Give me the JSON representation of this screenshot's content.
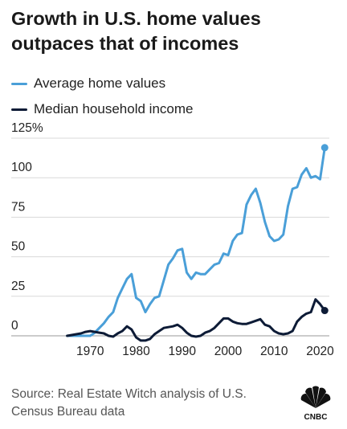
{
  "title_lines": [
    "Growth in U.S. home values",
    "outpaces that of incomes"
  ],
  "source": "Source: Real Estate Witch analysis of U.S. Census Bureau data",
  "logo_text": "CNBC",
  "colors": {
    "home": "#4a9fd8",
    "income": "#0d1b36",
    "grid": "#d9d9d9"
  },
  "chart_data": {
    "type": "line",
    "title": "Growth in U.S. home values outpaces that of incomes",
    "xlabel": "",
    "ylabel": "",
    "xlim": [
      1960,
      2022
    ],
    "ylim": [
      0,
      125
    ],
    "x_ticks": [
      "1970",
      "1980",
      "1990",
      "2000",
      "2010",
      "2020"
    ],
    "y_ticks": [
      "125%",
      "100",
      "75",
      "50",
      "25",
      "0"
    ],
    "grid": true,
    "legend_position": "top-left",
    "series": [
      {
        "name": "Average home values",
        "color": "#4a9fd8",
        "end_marker": true,
        "points": [
          [
            1965,
            0
          ],
          [
            1966,
            0
          ],
          [
            1967,
            0
          ],
          [
            1968,
            0
          ],
          [
            1969,
            0
          ],
          [
            1970,
            0
          ],
          [
            1971,
            2
          ],
          [
            1972,
            5
          ],
          [
            1973,
            8
          ],
          [
            1974,
            12
          ],
          [
            1975,
            15
          ],
          [
            1976,
            24
          ],
          [
            1977,
            30
          ],
          [
            1978,
            36
          ],
          [
            1979,
            39
          ],
          [
            1980,
            24
          ],
          [
            1981,
            22
          ],
          [
            1982,
            15
          ],
          [
            1983,
            20
          ],
          [
            1984,
            24
          ],
          [
            1985,
            25
          ],
          [
            1986,
            35
          ],
          [
            1987,
            45
          ],
          [
            1988,
            49
          ],
          [
            1989,
            54
          ],
          [
            1990,
            55
          ],
          [
            1991,
            40
          ],
          [
            1992,
            36
          ],
          [
            1993,
            40
          ],
          [
            1994,
            39
          ],
          [
            1995,
            39
          ],
          [
            1996,
            42
          ],
          [
            1997,
            45
          ],
          [
            1998,
            46
          ],
          [
            1999,
            52
          ],
          [
            2000,
            51
          ],
          [
            2001,
            60
          ],
          [
            2002,
            64
          ],
          [
            2003,
            65
          ],
          [
            2004,
            83
          ],
          [
            2005,
            89
          ],
          [
            2006,
            93
          ],
          [
            2007,
            84
          ],
          [
            2008,
            72
          ],
          [
            2009,
            63
          ],
          [
            2010,
            60
          ],
          [
            2011,
            61
          ],
          [
            2012,
            64
          ],
          [
            2013,
            82
          ],
          [
            2014,
            93
          ],
          [
            2015,
            94
          ],
          [
            2016,
            102
          ],
          [
            2017,
            106
          ],
          [
            2018,
            100
          ],
          [
            2019,
            101
          ],
          [
            2020,
            99
          ],
          [
            2021,
            119
          ]
        ]
      },
      {
        "name": "Median household income",
        "color": "#0d1b36",
        "end_marker": true,
        "points": [
          [
            1965,
            0
          ],
          [
            1966,
            0.5
          ],
          [
            1967,
            1
          ],
          [
            1968,
            1.5
          ],
          [
            1969,
            2.5
          ],
          [
            1970,
            3
          ],
          [
            1971,
            2.5
          ],
          [
            1972,
            2
          ],
          [
            1973,
            1.5
          ],
          [
            1974,
            0
          ],
          [
            1975,
            -0.5
          ],
          [
            1976,
            1.5
          ],
          [
            1977,
            3
          ],
          [
            1978,
            6
          ],
          [
            1979,
            4
          ],
          [
            1980,
            -1
          ],
          [
            1981,
            -3
          ],
          [
            1982,
            -3
          ],
          [
            1983,
            -2
          ],
          [
            1984,
            1
          ],
          [
            1985,
            3
          ],
          [
            1986,
            5
          ],
          [
            1987,
            5.5
          ],
          [
            1988,
            6
          ],
          [
            1989,
            7
          ],
          [
            1990,
            5
          ],
          [
            1991,
            2
          ],
          [
            1992,
            0
          ],
          [
            1993,
            -0.5
          ],
          [
            1994,
            0
          ],
          [
            1995,
            2
          ],
          [
            1996,
            3
          ],
          [
            1997,
            5
          ],
          [
            1998,
            8
          ],
          [
            1999,
            11
          ],
          [
            2000,
            11
          ],
          [
            2001,
            9
          ],
          [
            2002,
            8
          ],
          [
            2003,
            7.5
          ],
          [
            2004,
            7.5
          ],
          [
            2005,
            8.5
          ],
          [
            2006,
            9.5
          ],
          [
            2007,
            10.5
          ],
          [
            2008,
            7
          ],
          [
            2009,
            6
          ],
          [
            2010,
            3
          ],
          [
            2011,
            1.5
          ],
          [
            2012,
            1
          ],
          [
            2013,
            1.5
          ],
          [
            2014,
            3
          ],
          [
            2015,
            9
          ],
          [
            2016,
            12
          ],
          [
            2017,
            14
          ],
          [
            2018,
            15
          ],
          [
            2019,
            23
          ],
          [
            2020,
            20
          ],
          [
            2021,
            16
          ]
        ]
      }
    ]
  }
}
